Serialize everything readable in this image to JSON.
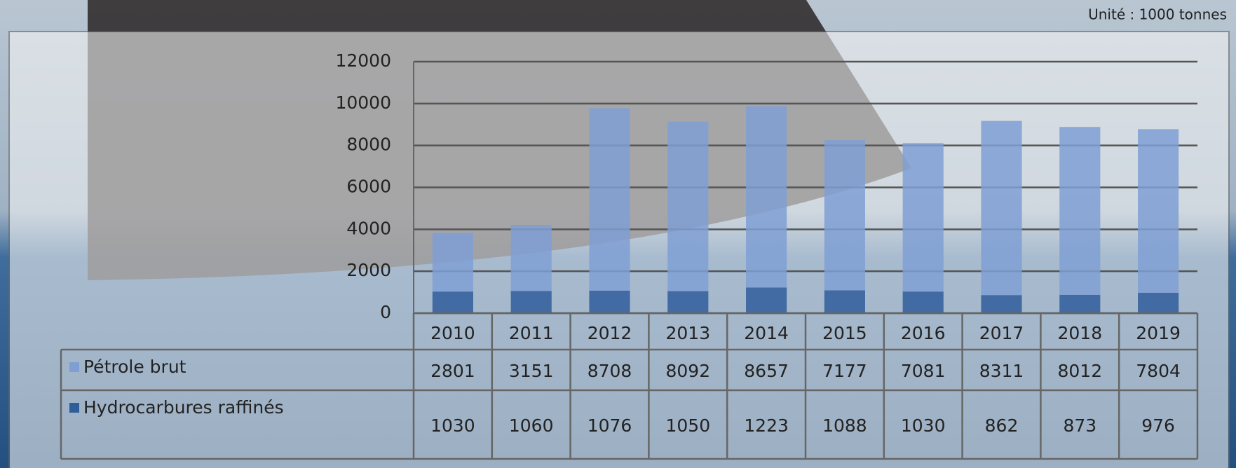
{
  "chart_data": {
    "type": "bar",
    "stacked": true,
    "annotation": "Unité : 1000 tonnes",
    "categories": [
      "2010",
      "2011",
      "2012",
      "2013",
      "2014",
      "2015",
      "2016",
      "2017",
      "2018",
      "2019"
    ],
    "series": [
      {
        "name": "Hydrocarbures raffinés",
        "color": "#2f5d9a",
        "values": [
          1030,
          1060,
          1076,
          1050,
          1223,
          1088,
          1030,
          862,
          873,
          976
        ]
      },
      {
        "name": "Pétrole brut",
        "color": "#7f9fd3",
        "values": [
          2801,
          3151,
          8708,
          8092,
          8657,
          7177,
          7081,
          8311,
          8012,
          7804
        ]
      }
    ],
    "ylim": [
      0,
      12000
    ],
    "yticks": [
      0,
      2000,
      4000,
      6000,
      8000,
      10000,
      12000
    ],
    "grid": true
  }
}
